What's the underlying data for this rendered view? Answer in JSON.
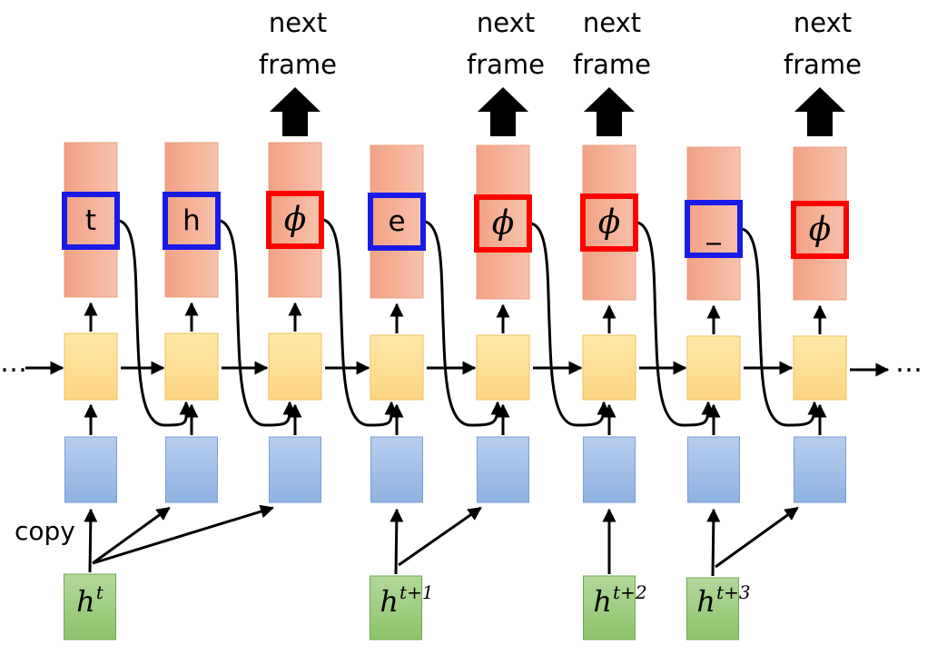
{
  "columns": [
    {
      "token": "t",
      "token_kind": "character",
      "highlight_color": "#1a1ae6",
      "emits": false
    },
    {
      "token": "h",
      "token_kind": "character",
      "highlight_color": "#1a1ae6",
      "emits": false
    },
    {
      "token": "ϕ",
      "token_kind": "blank",
      "highlight_color": "#ff0000",
      "emits": true
    },
    {
      "token": "e",
      "token_kind": "character",
      "highlight_color": "#1a1ae6",
      "emits": false
    },
    {
      "token": "ϕ",
      "token_kind": "blank",
      "highlight_color": "#ff0000",
      "emits": true
    },
    {
      "token": "ϕ",
      "token_kind": "blank",
      "highlight_color": "#ff0000",
      "emits": true
    },
    {
      "token": "_",
      "token_kind": "character",
      "highlight_color": "#1a1ae6",
      "emits": false
    },
    {
      "token": "ϕ",
      "token_kind": "blank",
      "highlight_color": "#ff0000",
      "emits": true
    }
  ],
  "emit_label_line1": "next",
  "emit_label_line2": "frame",
  "copy_label": "copy",
  "ellipsis_left": "…",
  "ellipsis_right": "…",
  "hidden_states": [
    {
      "base": "h",
      "superscript": "t",
      "feeds_columns": [
        0,
        1,
        2
      ]
    },
    {
      "base": "h",
      "superscript": "t+1",
      "feeds_columns": [
        3,
        4
      ]
    },
    {
      "base": "h",
      "superscript": "t+2",
      "feeds_columns": [
        5
      ]
    },
    {
      "base": "h",
      "superscript": "t+3",
      "feeds_columns": [
        6,
        7
      ]
    }
  ],
  "colors": {
    "output_block_top": "#f2a184",
    "output_block_bottom": "#f7c2ac",
    "output_border": "#e8a080",
    "rnn_cell_top": "#ffe8a8",
    "rnn_cell_bottom": "#fdd584",
    "rnn_border": "#f2c25c",
    "input_top": "#b7cdee",
    "input_bottom": "#8fb2e2",
    "input_border": "#7a9fd6",
    "hidden_top": "#b3d89a",
    "hidden_bottom": "#8cc46a",
    "hidden_border": "#6fa850",
    "arrow": "#000000"
  }
}
